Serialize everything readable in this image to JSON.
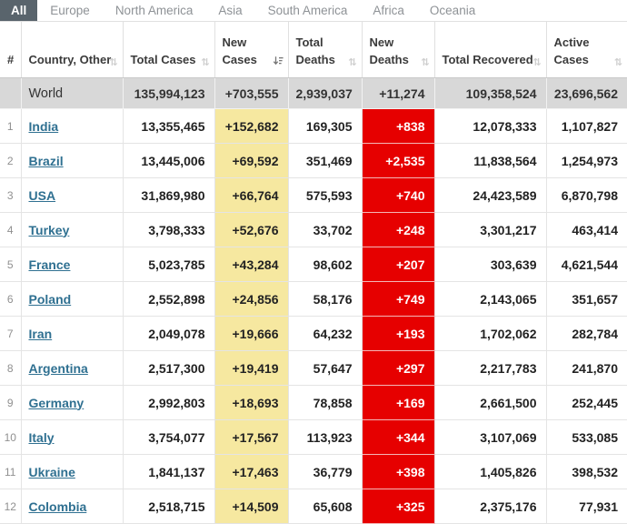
{
  "tabs": {
    "items": [
      {
        "label": "All",
        "active": true
      },
      {
        "label": "Europe",
        "active": false
      },
      {
        "label": "North America",
        "active": false
      },
      {
        "label": "Asia",
        "active": false
      },
      {
        "label": "South America",
        "active": false
      },
      {
        "label": "Africa",
        "active": false
      },
      {
        "label": "Oceania",
        "active": false
      }
    ]
  },
  "table": {
    "columns": [
      {
        "key": "rank",
        "label": "#",
        "sortable": false,
        "sort": null
      },
      {
        "key": "country",
        "label": "Country, Other",
        "sortable": true,
        "sort": "inactive"
      },
      {
        "key": "total_cases",
        "label": "Total Cases",
        "sortable": true,
        "sort": "inactive"
      },
      {
        "key": "new_cases",
        "label": "New Cases",
        "sortable": true,
        "sort": "active-desc"
      },
      {
        "key": "total_deaths",
        "label": "Total Deaths",
        "sortable": true,
        "sort": "inactive"
      },
      {
        "key": "new_deaths",
        "label": "New Deaths",
        "sortable": true,
        "sort": "inactive"
      },
      {
        "key": "total_recovered",
        "label": "Total Recovered",
        "sortable": true,
        "sort": "inactive"
      },
      {
        "key": "active_cases",
        "label": "Active Cases",
        "sortable": true,
        "sort": "inactive"
      }
    ],
    "world_row": {
      "rank": "",
      "country": "World",
      "total_cases": "135,994,123",
      "new_cases": "+703,555",
      "total_deaths": "2,939,037",
      "new_deaths": "+11,274",
      "total_recovered": "109,358,524",
      "active_cases": "23,696,562"
    },
    "rows": [
      {
        "rank": "1",
        "country": "India",
        "total_cases": "13,355,465",
        "new_cases": "+152,682",
        "total_deaths": "169,305",
        "new_deaths": "+838",
        "total_recovered": "12,078,333",
        "active_cases": "1,107,827"
      },
      {
        "rank": "2",
        "country": "Brazil",
        "total_cases": "13,445,006",
        "new_cases": "+69,592",
        "total_deaths": "351,469",
        "new_deaths": "+2,535",
        "total_recovered": "11,838,564",
        "active_cases": "1,254,973"
      },
      {
        "rank": "3",
        "country": "USA",
        "total_cases": "31,869,980",
        "new_cases": "+66,764",
        "total_deaths": "575,593",
        "new_deaths": "+740",
        "total_recovered": "24,423,589",
        "active_cases": "6,870,798"
      },
      {
        "rank": "4",
        "country": "Turkey",
        "total_cases": "3,798,333",
        "new_cases": "+52,676",
        "total_deaths": "33,702",
        "new_deaths": "+248",
        "total_recovered": "3,301,217",
        "active_cases": "463,414"
      },
      {
        "rank": "5",
        "country": "France",
        "total_cases": "5,023,785",
        "new_cases": "+43,284",
        "total_deaths": "98,602",
        "new_deaths": "+207",
        "total_recovered": "303,639",
        "active_cases": "4,621,544"
      },
      {
        "rank": "6",
        "country": "Poland",
        "total_cases": "2,552,898",
        "new_cases": "+24,856",
        "total_deaths": "58,176",
        "new_deaths": "+749",
        "total_recovered": "2,143,065",
        "active_cases": "351,657"
      },
      {
        "rank": "7",
        "country": "Iran",
        "total_cases": "2,049,078",
        "new_cases": "+19,666",
        "total_deaths": "64,232",
        "new_deaths": "+193",
        "total_recovered": "1,702,062",
        "active_cases": "282,784"
      },
      {
        "rank": "8",
        "country": "Argentina",
        "total_cases": "2,517,300",
        "new_cases": "+19,419",
        "total_deaths": "57,647",
        "new_deaths": "+297",
        "total_recovered": "2,217,783",
        "active_cases": "241,870"
      },
      {
        "rank": "9",
        "country": "Germany",
        "total_cases": "2,992,803",
        "new_cases": "+18,693",
        "total_deaths": "78,858",
        "new_deaths": "+169",
        "total_recovered": "2,661,500",
        "active_cases": "252,445"
      },
      {
        "rank": "10",
        "country": "Italy",
        "total_cases": "3,754,077",
        "new_cases": "+17,567",
        "total_deaths": "113,923",
        "new_deaths": "+344",
        "total_recovered": "3,107,069",
        "active_cases": "533,085"
      },
      {
        "rank": "11",
        "country": "Ukraine",
        "total_cases": "1,841,137",
        "new_cases": "+17,463",
        "total_deaths": "36,779",
        "new_deaths": "+398",
        "total_recovered": "1,405,826",
        "active_cases": "398,532"
      },
      {
        "rank": "12",
        "country": "Colombia",
        "total_cases": "2,518,715",
        "new_cases": "+14,509",
        "total_deaths": "65,608",
        "new_deaths": "+325",
        "total_recovered": "2,375,176",
        "active_cases": "77,931"
      }
    ]
  },
  "colors": {
    "new_cases_highlight": "#f6e8a0",
    "new_deaths_highlight": "#e60000",
    "active_tab_background": "#59646c",
    "country_link": "#2f7091",
    "world_row_background": "#d8d8d8"
  }
}
